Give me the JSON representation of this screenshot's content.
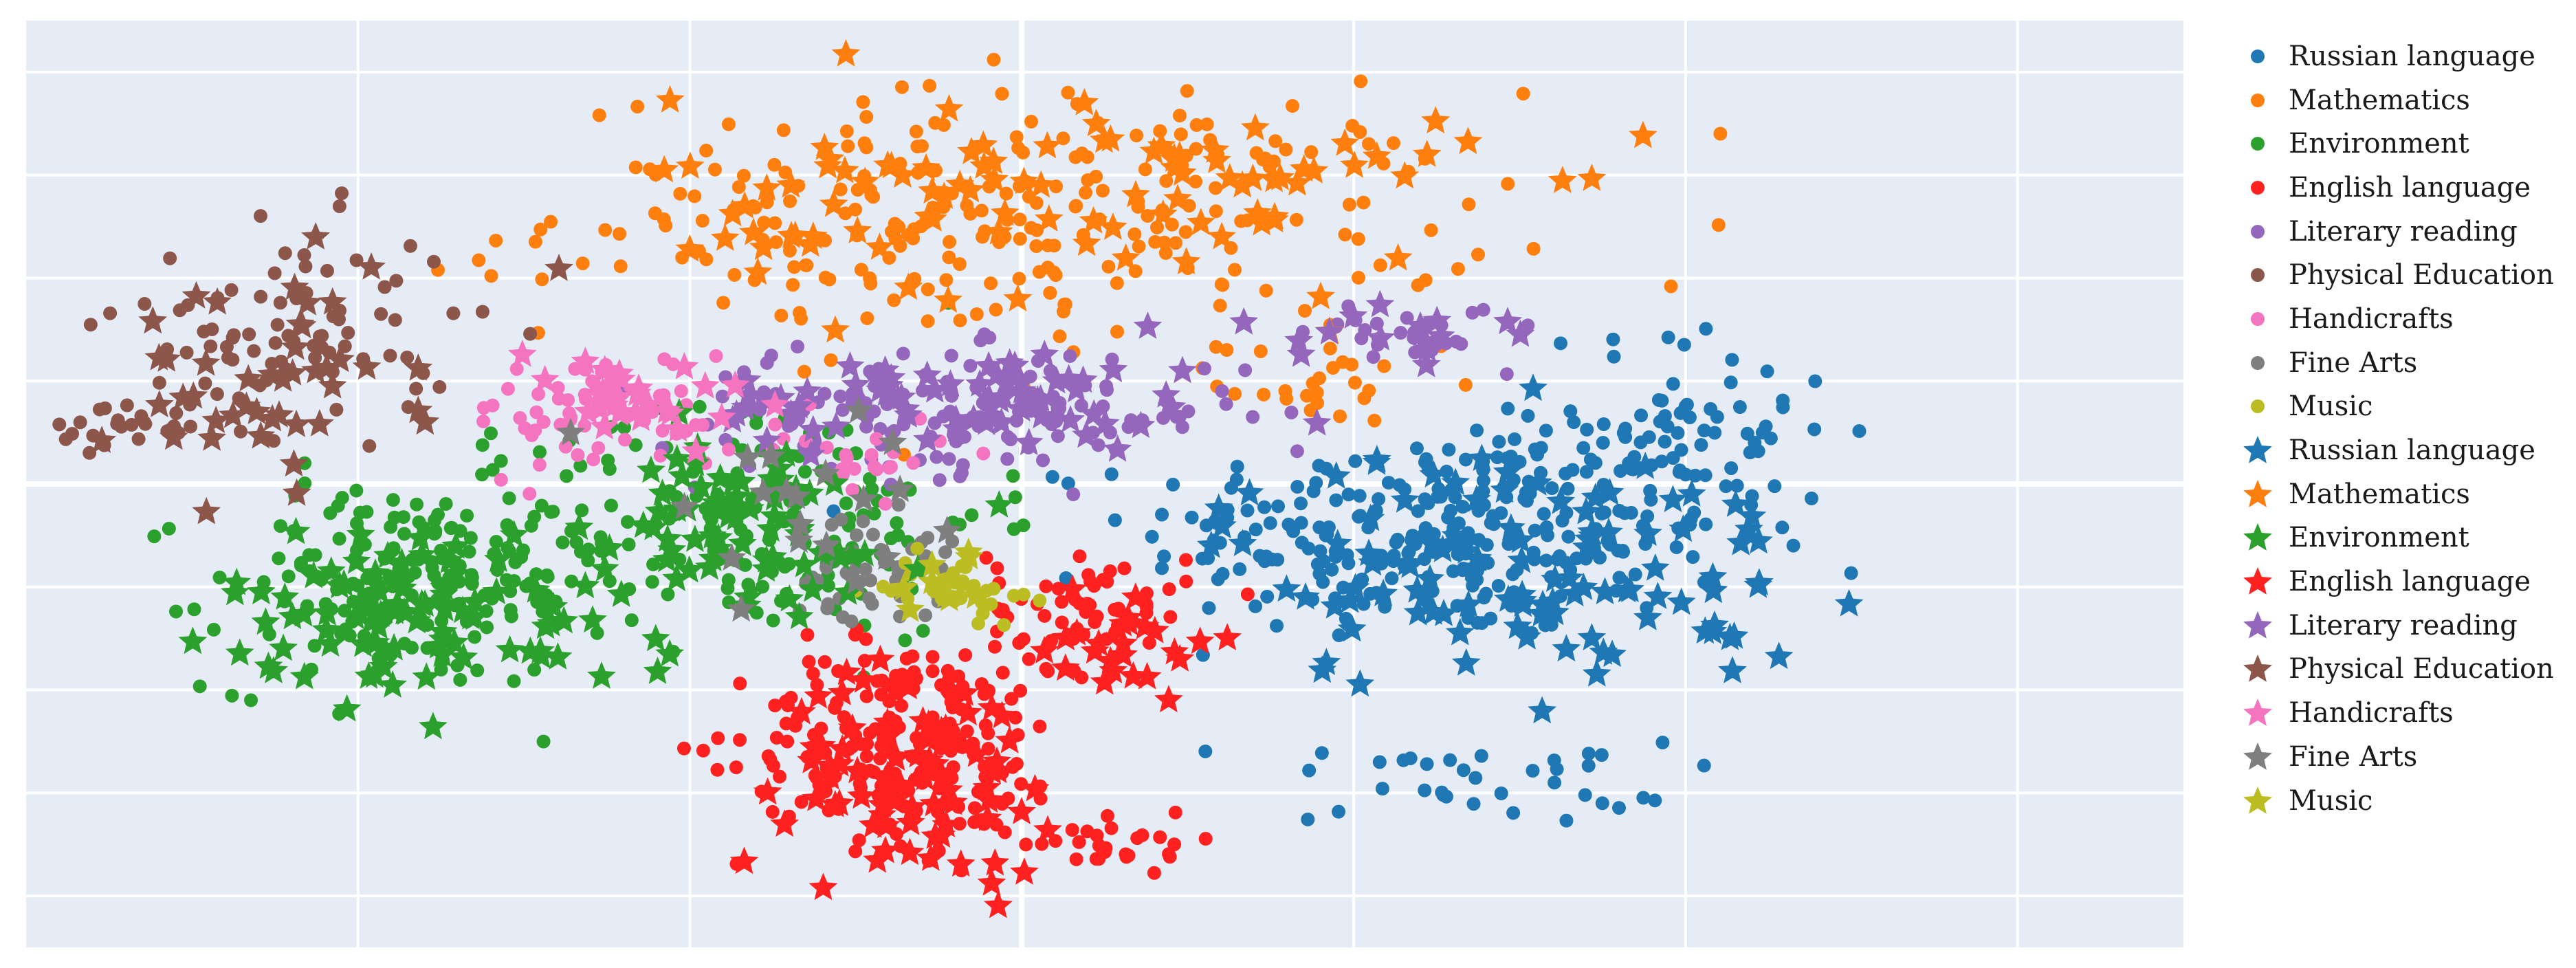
{
  "chart_data": {
    "type": "scatter",
    "title": "",
    "xlabel": "",
    "ylabel": "",
    "xlim": [
      -60,
      70
    ],
    "ylim": [
      -45,
      45
    ],
    "grid": true,
    "legend_position": "right",
    "background": "#e5ecf6",
    "series": [
      {
        "name": "Russian language",
        "marker": "circle",
        "color": "#1f77b4",
        "clusters": [
          {
            "cx": 25,
            "cy": -5,
            "sx": 9,
            "sy": 5,
            "n": 260
          },
          {
            "cx": 40,
            "cy": 5,
            "sx": 5,
            "sy": 5,
            "n": 80
          },
          {
            "cx": 27,
            "cy": -29,
            "sx": 6,
            "sy": 2,
            "n": 35
          }
        ]
      },
      {
        "name": "Mathematics",
        "marker": "circle",
        "color": "#ff7f0e",
        "clusters": [
          {
            "cx": 0,
            "cy": 26,
            "sx": 14,
            "sy": 6,
            "n": 260
          },
          {
            "cx": 18,
            "cy": 10,
            "sx": 3,
            "sy": 2,
            "n": 25
          }
        ]
      },
      {
        "name": "Environment",
        "marker": "circle",
        "color": "#2ca02c",
        "clusters": [
          {
            "cx": -37,
            "cy": -10,
            "sx": 6,
            "sy": 5,
            "n": 180
          },
          {
            "cx": -16,
            "cy": -3,
            "sx": 7,
            "sy": 6,
            "n": 160
          }
        ]
      },
      {
        "name": "English language",
        "marker": "circle",
        "color": "#ff2020",
        "clusters": [
          {
            "cx": -7,
            "cy": -25,
            "sx": 5,
            "sy": 5,
            "n": 200
          },
          {
            "cx": 4,
            "cy": -12,
            "sx": 3,
            "sy": 3,
            "n": 60
          },
          {
            "cx": 6,
            "cy": -35,
            "sx": 3,
            "sy": 1.2,
            "n": 30
          }
        ]
      },
      {
        "name": "Literary reading",
        "marker": "circle",
        "color": "#9467bd",
        "clusters": [
          {
            "cx": -4,
            "cy": 7,
            "sx": 9,
            "sy": 3,
            "n": 150
          },
          {
            "cx": 23,
            "cy": 15,
            "sx": 3,
            "sy": 1.5,
            "n": 30
          }
        ]
      },
      {
        "name": "Physical Education",
        "marker": "circle",
        "color": "#8c564b",
        "clusters": [
          {
            "cx": -44,
            "cy": 15,
            "sx": 5,
            "sy": 5,
            "n": 80
          },
          {
            "cx": -53,
            "cy": 5,
            "sx": 3,
            "sy": 1.5,
            "n": 25
          }
        ]
      },
      {
        "name": "Handicrafts",
        "marker": "circle",
        "color": "#f574c0",
        "clusters": [
          {
            "cx": -25,
            "cy": 7,
            "sx": 4,
            "sy": 3,
            "n": 60
          },
          {
            "cx": -10,
            "cy": 3,
            "sx": 3,
            "sy": 2,
            "n": 25
          }
        ]
      },
      {
        "name": "Fine Arts",
        "marker": "circle",
        "color": "#7f7f7f",
        "clusters": [
          {
            "cx": -9,
            "cy": -8,
            "sx": 2.5,
            "sy": 2.5,
            "n": 50
          }
        ]
      },
      {
        "name": "Music",
        "marker": "circle",
        "color": "#bcbd22",
        "clusters": [
          {
            "cx": -4,
            "cy": -10,
            "sx": 2,
            "sy": 1.5,
            "n": 40
          }
        ]
      },
      {
        "name": "Russian language",
        "marker": "star",
        "color": "#1f77b4",
        "clusters": [
          {
            "cx": 30,
            "cy": -8,
            "sx": 9,
            "sy": 6,
            "n": 110
          }
        ]
      },
      {
        "name": "Mathematics",
        "marker": "star",
        "color": "#ff7f0e",
        "clusters": [
          {
            "cx": 3,
            "cy": 28,
            "sx": 12,
            "sy": 5,
            "n": 100
          }
        ]
      },
      {
        "name": "Environment",
        "marker": "star",
        "color": "#2ca02c",
        "clusters": [
          {
            "cx": -36,
            "cy": -12,
            "sx": 6,
            "sy": 4,
            "n": 90
          },
          {
            "cx": -18,
            "cy": -5,
            "sx": 6,
            "sy": 5,
            "n": 70
          }
        ]
      },
      {
        "name": "English language",
        "marker": "star",
        "color": "#ff2020",
        "clusters": [
          {
            "cx": -6,
            "cy": -28,
            "sx": 4,
            "sy": 5,
            "n": 80
          },
          {
            "cx": 6,
            "cy": -15,
            "sx": 3,
            "sy": 3,
            "n": 25
          }
        ]
      },
      {
        "name": "Literary reading",
        "marker": "star",
        "color": "#9467bd",
        "clusters": [
          {
            "cx": -3,
            "cy": 8,
            "sx": 8,
            "sy": 2.5,
            "n": 70
          },
          {
            "cx": 23,
            "cy": 15,
            "sx": 3,
            "sy": 1.5,
            "n": 15
          }
        ]
      },
      {
        "name": "Physical Education",
        "marker": "star",
        "color": "#8c564b",
        "clusters": [
          {
            "cx": -46,
            "cy": 10,
            "sx": 5,
            "sy": 5,
            "n": 45
          }
        ]
      },
      {
        "name": "Handicrafts",
        "marker": "star",
        "color": "#f574c0",
        "clusters": [
          {
            "cx": -24,
            "cy": 8,
            "sx": 4,
            "sy": 3,
            "n": 30
          }
        ]
      },
      {
        "name": "Fine Arts",
        "marker": "star",
        "color": "#7f7f7f",
        "clusters": [
          {
            "cx": -12,
            "cy": -3,
            "sx": 7,
            "sy": 5,
            "n": 20
          }
        ]
      },
      {
        "name": "Music",
        "marker": "star",
        "color": "#bcbd22",
        "clusters": [
          {
            "cx": -5,
            "cy": -10,
            "sx": 3,
            "sy": 2,
            "n": 10
          }
        ]
      }
    ]
  }
}
